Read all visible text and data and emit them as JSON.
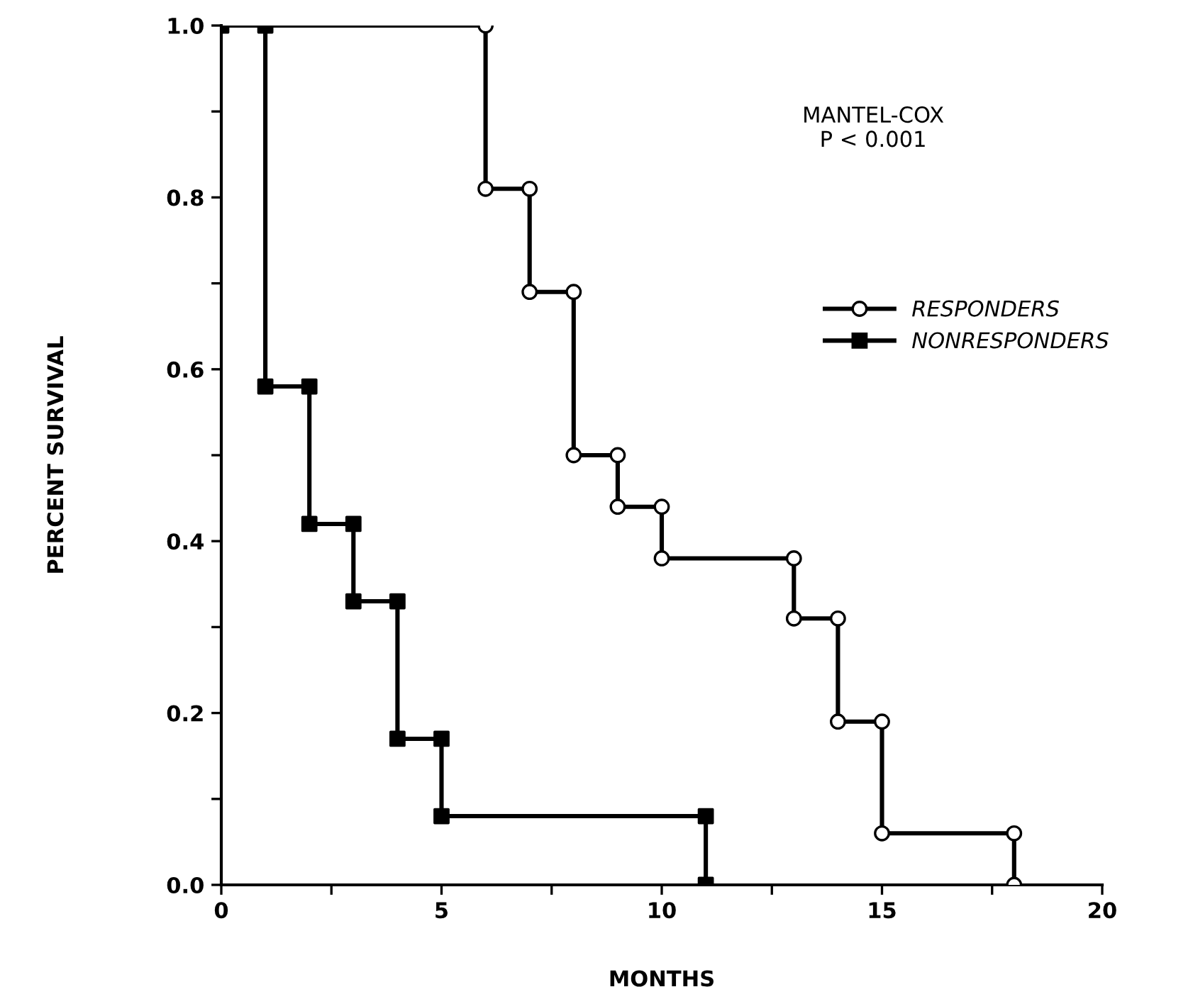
{
  "chart_data": {
    "type": "line",
    "xlabel": "MONTHS",
    "ylabel": "PERCENT SURVIVAL",
    "annotations": [
      "MANTEL-COX\nP < 0.001"
    ],
    "series": [
      {
        "name": "RESPONDERS",
        "color": "#000000",
        "marker": "circle",
        "x": [
          0,
          6,
          6,
          7,
          7,
          8,
          8,
          9,
          9,
          10,
          10,
          13,
          13,
          14,
          14,
          15,
          15,
          18,
          18
        ],
        "values": [
          1.0,
          1.0,
          0.81,
          0.81,
          0.69,
          0.69,
          0.5,
          0.5,
          0.44,
          0.44,
          0.38,
          0.38,
          0.31,
          0.31,
          0.19,
          0.19,
          0.06,
          0.06,
          0.0
        ]
      },
      {
        "name": "NONRESPONDERS",
        "color": "#000000",
        "marker": "square",
        "x": [
          0,
          1,
          1,
          2,
          2,
          3,
          3,
          4,
          4,
          5,
          5,
          11,
          11
        ],
        "values": [
          1.0,
          1.0,
          0.58,
          0.58,
          0.42,
          0.42,
          0.33,
          0.33,
          0.17,
          0.17,
          0.08,
          0.08,
          0.0
        ]
      }
    ],
    "xlim": [
      0,
      20
    ],
    "ylim": [
      0,
      1
    ],
    "xticks": [
      0,
      {
        "value": 2.5,
        "label": null
      },
      5,
      {
        "value": 7.5,
        "label": null
      },
      10,
      {
        "value": 12.5,
        "label": null
      },
      15,
      {
        "value": 17.5,
        "label": null
      },
      20
    ],
    "yticks": [
      {
        "value": 0,
        "label": "0.0"
      },
      {
        "value": 0.1,
        "label": null
      },
      {
        "value": 0.2,
        "label": "0.2"
      },
      {
        "value": 0.3,
        "label": null
      },
      {
        "value": 0.4,
        "label": "0.4"
      },
      {
        "value": 0.5,
        "label": null
      },
      {
        "value": 0.6,
        "label": "0.6"
      },
      {
        "value": 0.7,
        "label": null
      },
      {
        "value": 0.8,
        "label": "0.8"
      },
      {
        "value": 0.9,
        "label": null
      },
      {
        "value": 1,
        "label": "1.0"
      }
    ],
    "grid": false,
    "legend": "right",
    "line_style": "solid"
  }
}
